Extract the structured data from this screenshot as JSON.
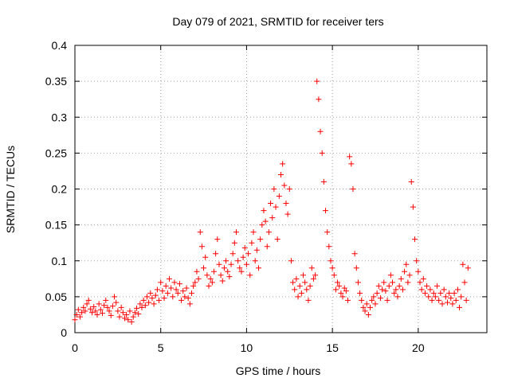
{
  "chart_data": {
    "type": "scatter",
    "title": "Day 079 of 2021, SRMTID for receiver ters",
    "xlabel": "GPS time / hours",
    "ylabel": "SRMTID / TECUs",
    "xlim": [
      0,
      24
    ],
    "ylim": [
      0,
      0.4
    ],
    "xticks": [
      0,
      5,
      10,
      15,
      20
    ],
    "yticks": [
      0,
      0.05,
      0.1,
      0.15,
      0.2,
      0.25,
      0.3,
      0.35,
      0.4
    ],
    "xtick_labels": [
      "0",
      "5",
      "10",
      "15",
      "20"
    ],
    "ytick_labels": [
      "0",
      "0.05",
      "0.1",
      "0.15",
      "0.2",
      "0.25",
      "0.3",
      "0.35",
      "0.4"
    ],
    "grid": true,
    "marker": "+",
    "color": "#ff0000",
    "series": [
      {
        "name": "SRMTID",
        "points": [
          [
            0.0,
            0.018
          ],
          [
            0.1,
            0.025
          ],
          [
            0.2,
            0.032
          ],
          [
            0.3,
            0.022
          ],
          [
            0.4,
            0.028
          ],
          [
            0.5,
            0.035
          ],
          [
            0.6,
            0.03
          ],
          [
            0.7,
            0.04
          ],
          [
            0.8,
            0.045
          ],
          [
            0.9,
            0.033
          ],
          [
            1.0,
            0.028
          ],
          [
            1.1,
            0.036
          ],
          [
            1.2,
            0.03
          ],
          [
            1.3,
            0.025
          ],
          [
            1.4,
            0.04
          ],
          [
            1.5,
            0.032
          ],
          [
            1.6,
            0.027
          ],
          [
            1.7,
            0.038
          ],
          [
            1.8,
            0.045
          ],
          [
            1.9,
            0.035
          ],
          [
            2.0,
            0.03
          ],
          [
            2.1,
            0.024
          ],
          [
            2.2,
            0.037
          ],
          [
            2.3,
            0.05
          ],
          [
            2.4,
            0.042
          ],
          [
            2.5,
            0.03
          ],
          [
            2.6,
            0.022
          ],
          [
            2.7,
            0.035
          ],
          [
            2.8,
            0.028
          ],
          [
            2.9,
            0.02
          ],
          [
            3.0,
            0.025
          ],
          [
            3.1,
            0.018
          ],
          [
            3.2,
            0.03
          ],
          [
            3.3,
            0.015
          ],
          [
            3.4,
            0.022
          ],
          [
            3.5,
            0.028
          ],
          [
            3.6,
            0.034
          ],
          [
            3.7,
            0.026
          ],
          [
            3.8,
            0.04
          ],
          [
            3.9,
            0.035
          ],
          [
            4.0,
            0.045
          ],
          [
            4.1,
            0.038
          ],
          [
            4.2,
            0.05
          ],
          [
            4.3,
            0.042
          ],
          [
            4.4,
            0.055
          ],
          [
            4.5,
            0.048
          ],
          [
            4.6,
            0.04
          ],
          [
            4.7,
            0.052
          ],
          [
            4.8,
            0.06
          ],
          [
            4.9,
            0.045
          ],
          [
            5.0,
            0.07
          ],
          [
            5.1,
            0.058
          ],
          [
            5.2,
            0.048
          ],
          [
            5.3,
            0.065
          ],
          [
            5.4,
            0.055
          ],
          [
            5.5,
            0.075
          ],
          [
            5.6,
            0.062
          ],
          [
            5.7,
            0.05
          ],
          [
            5.8,
            0.07
          ],
          [
            5.9,
            0.06
          ],
          [
            6.0,
            0.055
          ],
          [
            6.1,
            0.068
          ],
          [
            6.2,
            0.045
          ],
          [
            6.3,
            0.058
          ],
          [
            6.4,
            0.05
          ],
          [
            6.5,
            0.062
          ],
          [
            6.6,
            0.048
          ],
          [
            6.7,
            0.04
          ],
          [
            6.8,
            0.055
          ],
          [
            6.9,
            0.065
          ],
          [
            7.0,
            0.07
          ],
          [
            7.1,
            0.085
          ],
          [
            7.2,
            0.075
          ],
          [
            7.3,
            0.14
          ],
          [
            7.4,
            0.12
          ],
          [
            7.5,
            0.09
          ],
          [
            7.6,
            0.105
          ],
          [
            7.7,
            0.08
          ],
          [
            7.8,
            0.065
          ],
          [
            7.9,
            0.075
          ],
          [
            8.0,
            0.07
          ],
          [
            8.1,
            0.085
          ],
          [
            8.2,
            0.11
          ],
          [
            8.3,
            0.13
          ],
          [
            8.4,
            0.095
          ],
          [
            8.5,
            0.08
          ],
          [
            8.6,
            0.072
          ],
          [
            8.7,
            0.09
          ],
          [
            8.8,
            0.1
          ],
          [
            8.9,
            0.085
          ],
          [
            9.0,
            0.078
          ],
          [
            9.1,
            0.095
          ],
          [
            9.2,
            0.11
          ],
          [
            9.3,
            0.125
          ],
          [
            9.4,
            0.14
          ],
          [
            9.5,
            0.1
          ],
          [
            9.6,
            0.09
          ],
          [
            9.7,
            0.085
          ],
          [
            9.8,
            0.105
          ],
          [
            9.9,
            0.118
          ],
          [
            10.0,
            0.095
          ],
          [
            10.1,
            0.11
          ],
          [
            10.2,
            0.08
          ],
          [
            10.3,
            0.125
          ],
          [
            10.4,
            0.14
          ],
          [
            10.5,
            0.1
          ],
          [
            10.6,
            0.115
          ],
          [
            10.7,
            0.09
          ],
          [
            10.8,
            0.13
          ],
          [
            10.9,
            0.15
          ],
          [
            11.0,
            0.17
          ],
          [
            11.1,
            0.155
          ],
          [
            11.2,
            0.12
          ],
          [
            11.3,
            0.14
          ],
          [
            11.4,
            0.18
          ],
          [
            11.5,
            0.16
          ],
          [
            11.6,
            0.2
          ],
          [
            11.7,
            0.175
          ],
          [
            11.8,
            0.13
          ],
          [
            11.9,
            0.19
          ],
          [
            12.0,
            0.22
          ],
          [
            12.1,
            0.235
          ],
          [
            12.2,
            0.205
          ],
          [
            12.3,
            0.18
          ],
          [
            12.4,
            0.165
          ],
          [
            12.5,
            0.2
          ],
          [
            12.6,
            0.1
          ],
          [
            12.7,
            0.07
          ],
          [
            12.8,
            0.06
          ],
          [
            12.9,
            0.075
          ],
          [
            13.0,
            0.05
          ],
          [
            13.1,
            0.065
          ],
          [
            13.2,
            0.055
          ],
          [
            13.3,
            0.08
          ],
          [
            13.4,
            0.07
          ],
          [
            13.5,
            0.06
          ],
          [
            13.6,
            0.045
          ],
          [
            13.7,
            0.065
          ],
          [
            13.8,
            0.09
          ],
          [
            13.9,
            0.075
          ],
          [
            14.0,
            0.08
          ],
          [
            14.1,
            0.35
          ],
          [
            14.2,
            0.325
          ],
          [
            14.3,
            0.28
          ],
          [
            14.4,
            0.25
          ],
          [
            14.5,
            0.21
          ],
          [
            14.6,
            0.17
          ],
          [
            14.7,
            0.14
          ],
          [
            14.8,
            0.12
          ],
          [
            14.9,
            0.1
          ],
          [
            15.0,
            0.09
          ],
          [
            15.1,
            0.08
          ],
          [
            15.2,
            0.06
          ],
          [
            15.3,
            0.07
          ],
          [
            15.4,
            0.065
          ],
          [
            15.5,
            0.055
          ],
          [
            15.6,
            0.05
          ],
          [
            15.7,
            0.062
          ],
          [
            15.8,
            0.058
          ],
          [
            15.9,
            0.045
          ],
          [
            16.0,
            0.245
          ],
          [
            16.1,
            0.235
          ],
          [
            16.2,
            0.2
          ],
          [
            16.3,
            0.11
          ],
          [
            16.4,
            0.09
          ],
          [
            16.5,
            0.07
          ],
          [
            16.6,
            0.055
          ],
          [
            16.7,
            0.045
          ],
          [
            16.8,
            0.035
          ],
          [
            16.9,
            0.03
          ],
          [
            17.0,
            0.04
          ],
          [
            17.1,
            0.025
          ],
          [
            17.2,
            0.035
          ],
          [
            17.3,
            0.045
          ],
          [
            17.4,
            0.05
          ],
          [
            17.5,
            0.04
          ],
          [
            17.6,
            0.055
          ],
          [
            17.7,
            0.065
          ],
          [
            17.8,
            0.048
          ],
          [
            17.9,
            0.06
          ],
          [
            18.0,
            0.07
          ],
          [
            18.1,
            0.058
          ],
          [
            18.2,
            0.045
          ],
          [
            18.3,
            0.065
          ],
          [
            18.4,
            0.08
          ],
          [
            18.5,
            0.07
          ],
          [
            18.6,
            0.055
          ],
          [
            18.7,
            0.06
          ],
          [
            18.8,
            0.05
          ],
          [
            18.9,
            0.065
          ],
          [
            19.0,
            0.075
          ],
          [
            19.1,
            0.06
          ],
          [
            19.2,
            0.085
          ],
          [
            19.3,
            0.095
          ],
          [
            19.4,
            0.07
          ],
          [
            19.5,
            0.08
          ],
          [
            19.6,
            0.21
          ],
          [
            19.7,
            0.175
          ],
          [
            19.8,
            0.13
          ],
          [
            19.9,
            0.1
          ],
          [
            20.0,
            0.085
          ],
          [
            20.1,
            0.07
          ],
          [
            20.2,
            0.06
          ],
          [
            20.3,
            0.075
          ],
          [
            20.4,
            0.055
          ],
          [
            20.5,
            0.065
          ],
          [
            20.6,
            0.05
          ],
          [
            20.7,
            0.06
          ],
          [
            20.8,
            0.045
          ],
          [
            20.9,
            0.055
          ],
          [
            21.0,
            0.05
          ],
          [
            21.1,
            0.065
          ],
          [
            21.2,
            0.045
          ],
          [
            21.3,
            0.055
          ],
          [
            21.4,
            0.04
          ],
          [
            21.5,
            0.06
          ],
          [
            21.6,
            0.05
          ],
          [
            21.7,
            0.042
          ],
          [
            21.8,
            0.055
          ],
          [
            21.9,
            0.048
          ],
          [
            22.0,
            0.04
          ],
          [
            22.1,
            0.055
          ],
          [
            22.2,
            0.045
          ],
          [
            22.3,
            0.06
          ],
          [
            22.4,
            0.035
          ],
          [
            22.5,
            0.05
          ],
          [
            22.6,
            0.095
          ],
          [
            22.7,
            0.07
          ],
          [
            22.8,
            0.045
          ],
          [
            22.9,
            0.09
          ]
        ]
      }
    ]
  }
}
